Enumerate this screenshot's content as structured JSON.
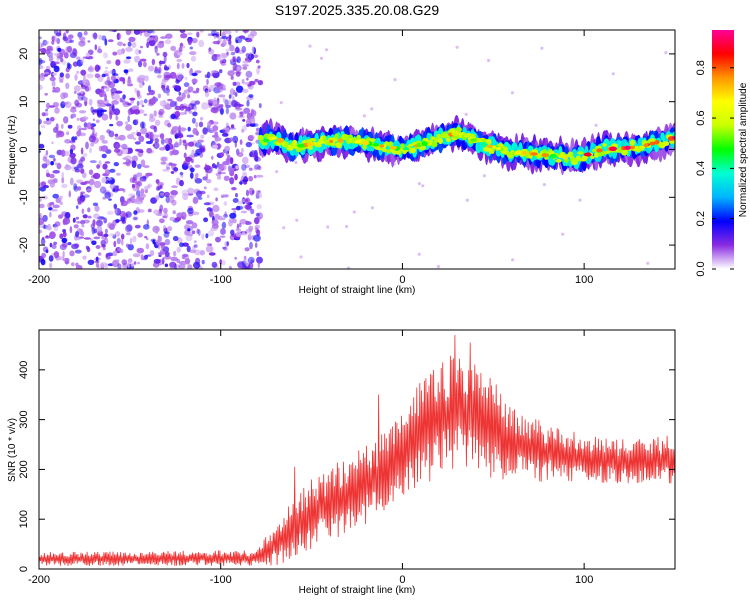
{
  "title": "S197.2025.335.20.08.G29",
  "chart_data": [
    {
      "type": "heatmap",
      "name": "spectrogram",
      "xlabel": "Height of straight line (km)",
      "ylabel": "Frequency (Hz)",
      "xlim": [
        -200,
        150
      ],
      "ylim": [
        -25,
        25
      ],
      "xticks": [
        -200,
        -100,
        0,
        100
      ],
      "yticks": [
        -20,
        -10,
        0,
        10,
        20
      ],
      "signal_start_km": -78,
      "ridge_center_hz": [
        {
          "x": -78,
          "y": 1.5
        },
        {
          "x": -70,
          "y": 2.5
        },
        {
          "x": -60,
          "y": 0.5
        },
        {
          "x": -45,
          "y": 1.5
        },
        {
          "x": -30,
          "y": 2
        },
        {
          "x": -15,
          "y": 1
        },
        {
          "x": 0,
          "y": 0
        },
        {
          "x": 15,
          "y": 1.5
        },
        {
          "x": 30,
          "y": 3.5
        },
        {
          "x": 45,
          "y": 1
        },
        {
          "x": 60,
          "y": -0.5
        },
        {
          "x": 75,
          "y": -1
        },
        {
          "x": 95,
          "y": -2
        },
        {
          "x": 110,
          "y": 0
        },
        {
          "x": 130,
          "y": 0.5
        },
        {
          "x": 150,
          "y": 2.5
        }
      ],
      "colorbar": {
        "label": "Normalized spectral amplitude",
        "range": [
          0,
          0.95
        ],
        "ticks": [
          "0.0",
          "0.2",
          "0.4",
          "0.6",
          "0.8"
        ],
        "colors": [
          "#ffffff",
          "#8a2be2",
          "#0000ff",
          "#00b4ff",
          "#00ffd2",
          "#00ff00",
          "#c8ff00",
          "#ffff00",
          "#ff9600",
          "#ff0000",
          "#ff0096"
        ]
      }
    },
    {
      "type": "line",
      "name": "snr",
      "xlabel": "Height of straight line (km)",
      "ylabel": "SNR (10 * v/v)",
      "xlim": [
        -200,
        150
      ],
      "ylim": [
        0,
        480
      ],
      "xticks": [
        -200,
        -100,
        0,
        100
      ],
      "yticks": [
        0,
        100,
        200,
        300,
        400
      ],
      "color": "#ee3333",
      "envelope": [
        {
          "x": -200,
          "mean": 20,
          "amp": 14
        },
        {
          "x": -80,
          "mean": 22,
          "amp": 16
        },
        {
          "x": -70,
          "mean": 50,
          "amp": 45
        },
        {
          "x": -60,
          "mean": 80,
          "amp": 60
        },
        {
          "x": -50,
          "mean": 110,
          "amp": 70
        },
        {
          "x": -30,
          "mean": 150,
          "amp": 80
        },
        {
          "x": -15,
          "mean": 180,
          "amp": 80
        },
        {
          "x": 0,
          "mean": 230,
          "amp": 90
        },
        {
          "x": 10,
          "mean": 270,
          "amp": 110
        },
        {
          "x": 20,
          "mean": 300,
          "amp": 115
        },
        {
          "x": 30,
          "mean": 320,
          "amp": 120
        },
        {
          "x": 40,
          "mean": 310,
          "amp": 115
        },
        {
          "x": 50,
          "mean": 280,
          "amp": 100
        },
        {
          "x": 60,
          "mean": 250,
          "amp": 75
        },
        {
          "x": 80,
          "mean": 235,
          "amp": 60
        },
        {
          "x": 100,
          "mean": 225,
          "amp": 50
        },
        {
          "x": 120,
          "mean": 215,
          "amp": 45
        },
        {
          "x": 150,
          "mean": 220,
          "amp": 50
        }
      ],
      "spikes": [
        {
          "x": -59,
          "y": 205
        },
        {
          "x": -13,
          "y": 350
        },
        {
          "x": 22,
          "y": 415
        },
        {
          "x": 29,
          "y": 470
        },
        {
          "x": 37,
          "y": 455
        }
      ]
    }
  ]
}
